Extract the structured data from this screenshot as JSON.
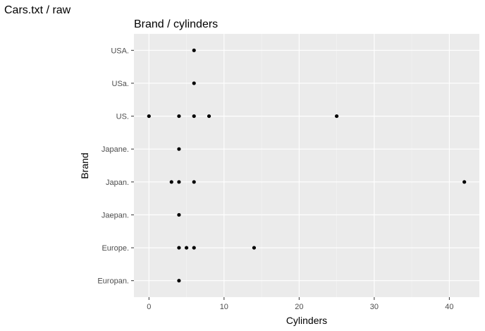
{
  "window": {
    "title": "Cars.txt / raw"
  },
  "colors": {
    "panel_background": "#ebebeb",
    "grid_major": "#ffffff",
    "point": "#000000",
    "axis_text": "#4d4d4d",
    "title_text": "#000000"
  },
  "chart_data": {
    "type": "scatter",
    "title": "Brand / cylinders",
    "xlabel": "Cylinders",
    "ylabel": "Brand",
    "xlim": [
      -2,
      44
    ],
    "x_ticks": [
      0,
      10,
      20,
      30,
      40
    ],
    "categories": [
      "Europan.",
      "Europe.",
      "Jaepan.",
      "Japan.",
      "Japane.",
      "US.",
      "USa.",
      "USA."
    ],
    "grid": true,
    "legend": "none",
    "points": [
      {
        "x": 4,
        "y": "Europan."
      },
      {
        "x": 4,
        "y": "Europe."
      },
      {
        "x": 5,
        "y": "Europe."
      },
      {
        "x": 6,
        "y": "Europe."
      },
      {
        "x": 14,
        "y": "Europe."
      },
      {
        "x": 4,
        "y": "Jaepan."
      },
      {
        "x": 3,
        "y": "Japan."
      },
      {
        "x": 4,
        "y": "Japan."
      },
      {
        "x": 6,
        "y": "Japan."
      },
      {
        "x": 42,
        "y": "Japan."
      },
      {
        "x": 4,
        "y": "Japane."
      },
      {
        "x": 0,
        "y": "US."
      },
      {
        "x": 4,
        "y": "US."
      },
      {
        "x": 6,
        "y": "US."
      },
      {
        "x": 8,
        "y": "US."
      },
      {
        "x": 25,
        "y": "US."
      },
      {
        "x": 6,
        "y": "USa."
      },
      {
        "x": 6,
        "y": "USA."
      }
    ]
  }
}
